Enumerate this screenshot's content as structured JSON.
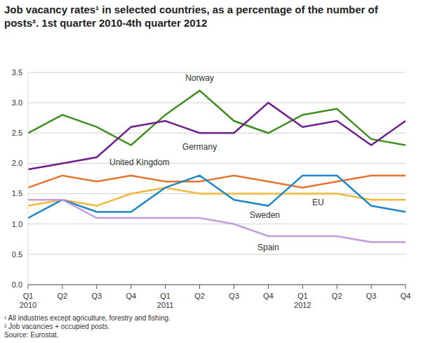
{
  "chart_data": {
    "type": "line",
    "title": "Job vacancy rates¹ in selected countries, as a percentage of the number of posts². 1st quarter 2010-4th quarter 2012",
    "footnotes": [
      "¹ All industries except agriculture, forestry and fishing.",
      "² Job vacancies + occupied posts.",
      "Source: Eurostat."
    ],
    "categories": [
      "Q1 2010",
      "Q2",
      "Q3",
      "Q4",
      "Q1 2011",
      "Q2",
      "Q3",
      "Q4",
      "Q1 2012",
      "Q2",
      "Q3",
      "Q4"
    ],
    "series": [
      {
        "name": "Norway",
        "color": "#3f8f1f",
        "values": [
          2.5,
          2.8,
          2.6,
          2.3,
          2.8,
          3.2,
          2.7,
          2.5,
          2.8,
          2.9,
          2.4,
          2.3
        ]
      },
      {
        "name": "Germany",
        "color": "#6b1f8c",
        "values": [
          1.9,
          2.0,
          2.1,
          2.6,
          2.7,
          2.5,
          2.5,
          3.0,
          2.6,
          2.7,
          2.3,
          2.7
        ]
      },
      {
        "name": "United Kingdom",
        "color": "#e8732e",
        "values": [
          1.6,
          1.8,
          1.7,
          1.8,
          1.7,
          1.7,
          1.8,
          1.7,
          1.6,
          1.7,
          1.8,
          1.8
        ]
      },
      {
        "name": "EU",
        "color": "#f2b83c",
        "values": [
          1.3,
          1.4,
          1.3,
          1.5,
          1.6,
          1.5,
          1.5,
          1.5,
          1.5,
          1.5,
          1.4,
          1.4
        ]
      },
      {
        "name": "Sweden",
        "color": "#1f88c8",
        "values": [
          1.1,
          1.4,
          1.2,
          1.2,
          1.6,
          1.8,
          1.4,
          1.3,
          1.8,
          1.8,
          1.3,
          1.2
        ]
      },
      {
        "name": "Spain",
        "color": "#c49de0",
        "values": [
          1.4,
          1.4,
          1.1,
          1.1,
          1.1,
          1.1,
          1.0,
          0.8,
          0.8,
          0.8,
          0.7,
          0.7
        ]
      }
    ],
    "ylim": [
      0,
      3.5
    ],
    "yticks": [
      {
        "value": 0,
        "label": "0.0"
      },
      0.5,
      {
        "value": 1,
        "label": "1.0"
      },
      1.5,
      {
        "value": 2,
        "label": "2.0"
      },
      2.5,
      {
        "value": 3,
        "label": "3.0"
      },
      3.5
    ],
    "grid": true
  }
}
